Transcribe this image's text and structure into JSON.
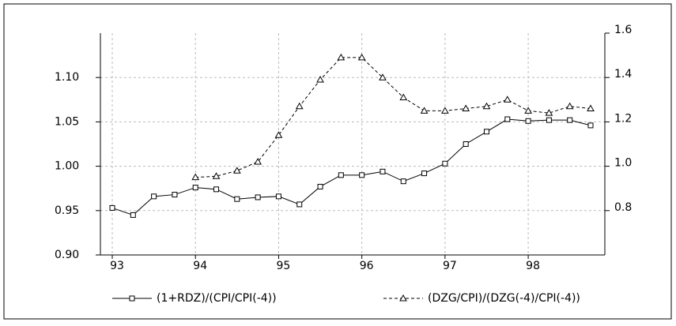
{
  "chart_data": {
    "type": "line",
    "categories": [
      "93",
      null,
      null,
      null,
      "94",
      null,
      null,
      null,
      "95",
      null,
      null,
      null,
      "96",
      null,
      null,
      null,
      "97",
      null,
      null,
      null,
      "98",
      null,
      null,
      null
    ],
    "series": [
      {
        "name": "(1+RDZ)/(CPI/CPI(-4))",
        "color": "#000000",
        "marker": "square",
        "dash": "solid",
        "values": [
          0.953,
          0.945,
          0.966,
          0.968,
          0.976,
          0.974,
          0.963,
          0.965,
          0.966,
          0.957,
          0.977,
          0.99,
          0.99,
          0.994,
          0.983,
          0.992,
          1.003,
          1.025,
          1.039,
          1.053,
          1.051,
          1.052,
          1.052,
          1.046
        ]
      },
      {
        "name": "(DZG/CPI)/(DZG(-4)/CPI(-4))",
        "color": "#000000",
        "marker": "triangle",
        "dash": "dashed",
        "axis": "y2",
        "values": [
          null,
          null,
          null,
          null,
          0.95,
          0.955,
          0.98,
          1.02,
          1.14,
          1.27,
          1.39,
          1.49,
          1.49,
          1.4,
          1.31,
          1.25,
          1.25,
          1.26,
          1.27,
          1.3,
          1.25,
          1.24,
          1.27,
          1.26
        ]
      }
    ],
    "ylim": [
      0.9,
      1.15
    ],
    "yticks": [
      {
        "value": 0.9,
        "label": "0.90"
      },
      0.95,
      {
        "value": 1.0,
        "label": "1.00"
      },
      1.05,
      {
        "value": 1.1,
        "label": "1.10"
      }
    ],
    "y2lim": [
      0.6,
      1.6
    ],
    "y2ticks": [
      0.8,
      {
        "value": 1.0,
        "label": "1.0"
      },
      1.2,
      1.4,
      1.6
    ],
    "grid": true,
    "legend": "bottom"
  }
}
